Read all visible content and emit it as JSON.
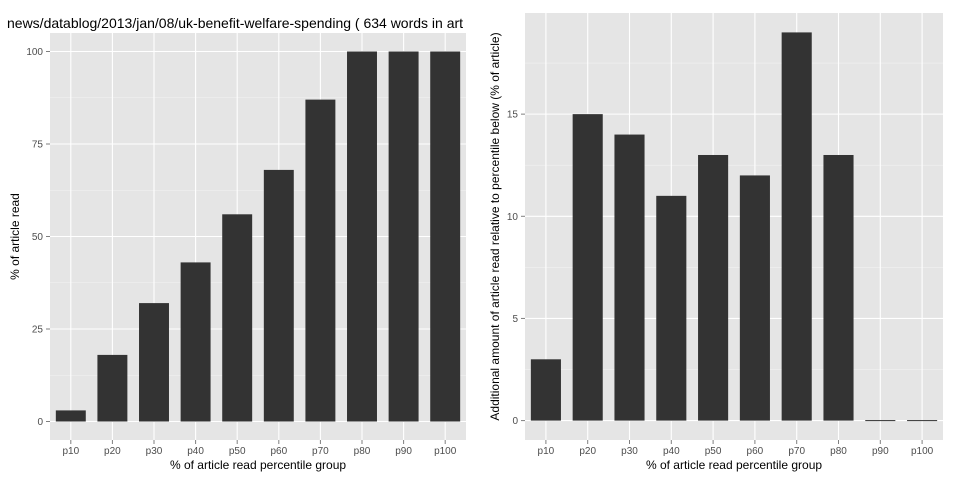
{
  "chart_data": [
    {
      "type": "bar",
      "title": "news/datablog/2013/jan/08/uk-benefit-welfare-spending ( 634 words in art",
      "xlabel": "% of article read percentile group",
      "ylabel": "% of article read",
      "categories": [
        "p10",
        "p20",
        "p30",
        "p40",
        "p50",
        "p60",
        "p70",
        "p80",
        "p90",
        "p100"
      ],
      "values": [
        3,
        18,
        32,
        43,
        56,
        68,
        87,
        100,
        100,
        100
      ],
      "ylim": [
        -5,
        105
      ],
      "yticks": [
        0,
        25,
        50,
        75,
        100
      ],
      "grid": true,
      "bar_color": "#333333",
      "panel_color": "#e5e5e5"
    },
    {
      "type": "bar",
      "title": "",
      "xlabel": "% of article read percentile group",
      "ylabel": "Additional amount of article read relative to percentile below (% of article)",
      "categories": [
        "p10",
        "p20",
        "p30",
        "p40",
        "p50",
        "p60",
        "p70",
        "p80",
        "p90",
        "p100"
      ],
      "values": [
        3,
        15,
        14,
        11,
        13,
        12,
        19,
        13,
        0,
        0
      ],
      "ylim": [
        -0.95,
        19.95
      ],
      "yticks": [
        0,
        5,
        10,
        15
      ],
      "grid": true,
      "bar_color": "#333333",
      "panel_color": "#e5e5e5"
    }
  ]
}
